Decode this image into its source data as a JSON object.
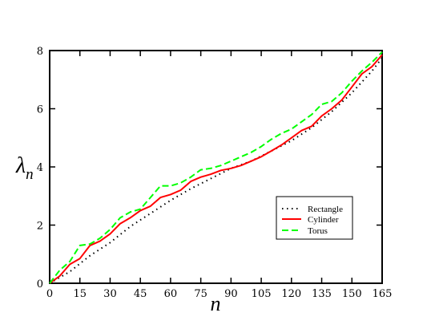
{
  "chart_data": {
    "type": "line",
    "title": "",
    "xlabel": "n",
    "ylabel_main": "λ",
    "ylabel_sub": "n",
    "xlim": [
      0,
      165
    ],
    "ylim": [
      0,
      8
    ],
    "x_ticks": [
      0,
      15,
      30,
      45,
      60,
      75,
      90,
      105,
      120,
      135,
      150,
      165
    ],
    "y_ticks": [
      0,
      2,
      4,
      6,
      8
    ],
    "grid": false,
    "legend_position": "bottom-right",
    "series": [
      {
        "name": "Rectangle",
        "style": "dotted",
        "color": "#000000",
        "points": [
          [
            0,
            0
          ],
          [
            10,
            0.4
          ],
          [
            20,
            0.95
          ],
          [
            30,
            1.4
          ],
          [
            40,
            1.95
          ],
          [
            50,
            2.4
          ],
          [
            60,
            2.85
          ],
          [
            70,
            3.25
          ],
          [
            80,
            3.6
          ],
          [
            90,
            3.95
          ],
          [
            100,
            4.2
          ],
          [
            110,
            4.55
          ],
          [
            120,
            4.9
          ],
          [
            130,
            5.35
          ],
          [
            140,
            5.9
          ],
          [
            150,
            6.55
          ],
          [
            160,
            7.3
          ],
          [
            165,
            7.75
          ]
        ]
      },
      {
        "name": "Cylinder",
        "style": "solid",
        "color": "#ff0000",
        "points": [
          [
            0,
            0
          ],
          [
            5,
            0.25
          ],
          [
            10,
            0.65
          ],
          [
            15,
            0.85
          ],
          [
            20,
            1.3
          ],
          [
            25,
            1.45
          ],
          [
            30,
            1.7
          ],
          [
            35,
            2.05
          ],
          [
            40,
            2.25
          ],
          [
            45,
            2.5
          ],
          [
            50,
            2.65
          ],
          [
            55,
            2.95
          ],
          [
            60,
            3.05
          ],
          [
            65,
            3.2
          ],
          [
            70,
            3.5
          ],
          [
            75,
            3.65
          ],
          [
            80,
            3.75
          ],
          [
            85,
            3.88
          ],
          [
            90,
            3.95
          ],
          [
            95,
            4.05
          ],
          [
            100,
            4.2
          ],
          [
            105,
            4.35
          ],
          [
            110,
            4.55
          ],
          [
            115,
            4.75
          ],
          [
            120,
            5.0
          ],
          [
            125,
            5.25
          ],
          [
            130,
            5.4
          ],
          [
            135,
            5.75
          ],
          [
            140,
            6.0
          ],
          [
            145,
            6.3
          ],
          [
            150,
            6.75
          ],
          [
            155,
            7.2
          ],
          [
            160,
            7.45
          ],
          [
            165,
            7.85
          ]
        ]
      },
      {
        "name": "Torus",
        "style": "dashed",
        "color": "#00ff00",
        "points": [
          [
            0,
            0
          ],
          [
            5,
            0.45
          ],
          [
            10,
            0.75
          ],
          [
            15,
            1.3
          ],
          [
            20,
            1.35
          ],
          [
            25,
            1.55
          ],
          [
            30,
            1.85
          ],
          [
            35,
            2.25
          ],
          [
            40,
            2.45
          ],
          [
            45,
            2.55
          ],
          [
            50,
            2.95
          ],
          [
            55,
            3.35
          ],
          [
            60,
            3.35
          ],
          [
            65,
            3.45
          ],
          [
            70,
            3.65
          ],
          [
            75,
            3.9
          ],
          [
            80,
            3.95
          ],
          [
            85,
            4.05
          ],
          [
            90,
            4.2
          ],
          [
            95,
            4.35
          ],
          [
            100,
            4.5
          ],
          [
            105,
            4.7
          ],
          [
            110,
            4.95
          ],
          [
            115,
            5.15
          ],
          [
            120,
            5.3
          ],
          [
            125,
            5.55
          ],
          [
            130,
            5.8
          ],
          [
            135,
            6.15
          ],
          [
            140,
            6.25
          ],
          [
            145,
            6.55
          ],
          [
            150,
            6.95
          ],
          [
            155,
            7.3
          ],
          [
            160,
            7.6
          ],
          [
            165,
            7.95
          ]
        ]
      }
    ]
  }
}
